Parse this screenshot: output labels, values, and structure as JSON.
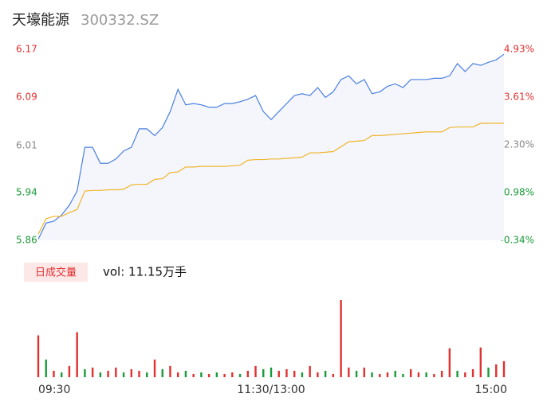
{
  "chart_data": [
    {
      "type": "line",
      "title": "天壕能源",
      "subtitle": "300332.SZ",
      "xlim": [
        0,
        60
      ],
      "xticks": [
        {
          "value": 0,
          "label": "09:30"
        },
        {
          "value": 30,
          "label": "11:30/13:00"
        },
        {
          "value": 60,
          "label": "15:00"
        }
      ],
      "ylim": [
        5.86,
        6.17
      ],
      "yticks": [
        5.86,
        {
          "value": 5.9375,
          "label": "5.94"
        },
        {
          "value": 6.014,
          "label": "6.01"
        },
        {
          "value": 6.0925,
          "label": "6.09"
        },
        6.17
      ],
      "ytick_colors": [
        "#1a9a3a",
        "#1a9a3a",
        "#888888",
        "#e03030",
        "#e03030"
      ],
      "y2lim": [
        -0.34,
        4.93
      ],
      "y2ticks": [
        {
          "value": -0.34,
          "label": "-0.34%"
        },
        {
          "value": 0.98,
          "label": "0.98%"
        },
        {
          "value": 2.3,
          "label": "2.30%"
        },
        {
          "value": 3.61,
          "label": "3.61%"
        },
        {
          "value": 4.93,
          "label": "4.93%"
        }
      ],
      "series": [
        {
          "name": "price",
          "color": "#4a7fe0",
          "area_color": "#f4f6fc",
          "values": [
            5.862,
            5.888,
            5.891,
            5.901,
            5.917,
            5.94,
            6.011,
            6.011,
            5.985,
            5.985,
            5.992,
            6.005,
            6.011,
            6.041,
            6.041,
            6.03,
            6.043,
            6.069,
            6.105,
            6.08,
            6.082,
            6.08,
            6.076,
            6.076,
            6.082,
            6.082,
            6.085,
            6.089,
            6.095,
            6.069,
            6.056,
            6.069,
            6.082,
            6.095,
            6.098,
            6.095,
            6.108,
            6.092,
            6.101,
            6.121,
            6.127,
            6.114,
            6.121,
            6.098,
            6.101,
            6.11,
            6.114,
            6.108,
            6.121,
            6.121,
            6.121,
            6.123,
            6.123,
            6.127,
            6.147,
            6.134,
            6.147,
            6.144,
            6.149,
            6.153,
            6.162
          ]
        },
        {
          "name": "average",
          "color": "#f0b429",
          "values": [
            5.87,
            5.895,
            5.899,
            5.899,
            5.905,
            5.91,
            5.94,
            5.941,
            5.941,
            5.942,
            5.942,
            5.943,
            5.95,
            5.951,
            5.951,
            5.959,
            5.96,
            5.97,
            5.971,
            5.979,
            5.979,
            5.98,
            5.98,
            5.98,
            5.98,
            5.981,
            5.982,
            5.99,
            5.991,
            5.991,
            5.992,
            5.992,
            5.993,
            5.994,
            5.995,
            6.002,
            6.002,
            6.003,
            6.004,
            6.012,
            6.02,
            6.021,
            6.022,
            6.03,
            6.03,
            6.031,
            6.032,
            6.033,
            6.034,
            6.035,
            6.036,
            6.036,
            6.036,
            6.043,
            6.044,
            6.044,
            6.044,
            6.05,
            6.05,
            6.05,
            6.05
          ]
        }
      ]
    },
    {
      "type": "bar",
      "title": "日成交量",
      "subtitle": "vol: 11.15万手",
      "values": [
        52,
        22,
        8,
        6,
        14,
        56,
        10,
        12,
        6,
        8,
        12,
        6,
        10,
        8,
        6,
        22,
        10,
        14,
        6,
        8,
        4,
        6,
        4,
        6,
        4,
        6,
        4,
        8,
        14,
        10,
        12,
        8,
        10,
        8,
        6,
        14,
        6,
        8,
        4,
        96,
        12,
        8,
        12,
        6,
        4,
        6,
        8,
        4,
        10,
        6,
        6,
        4,
        8,
        36,
        8,
        6,
        10,
        37,
        12,
        16,
        20
      ],
      "colors": [
        "#e03030",
        "#1a9a3a",
        "#e03030",
        "#1a9a3a",
        "#e03030",
        "#e03030",
        "#1a9a3a",
        "#e03030",
        "#1a9a3a",
        "#e03030",
        "#e03030",
        "#1a9a3a",
        "#e03030",
        "#e03030",
        "#1a9a3a",
        "#e03030",
        "#1a9a3a",
        "#e03030",
        "#e03030",
        "#1a9a3a",
        "#e03030",
        "#1a9a3a",
        "#e03030",
        "#1a9a3a",
        "#e03030",
        "#e03030",
        "#1a9a3a",
        "#e03030",
        "#e03030",
        "#1a9a3a",
        "#1a9a3a",
        "#e03030",
        "#e03030",
        "#e03030",
        "#1a9a3a",
        "#e03030",
        "#e03030",
        "#1a9a3a",
        "#e03030",
        "#e03030",
        "#e03030",
        "#1a9a3a",
        "#e03030",
        "#1a9a3a",
        "#e03030",
        "#e03030",
        "#1a9a3a",
        "#1a9a3a",
        "#e03030",
        "#e03030",
        "#1a9a3a",
        "#e03030",
        "#e03030",
        "#e03030",
        "#1a9a3a",
        "#e03030",
        "#e03030",
        "#e03030",
        "#1a9a3a",
        "#e03030",
        "#e03030"
      ]
    }
  ]
}
